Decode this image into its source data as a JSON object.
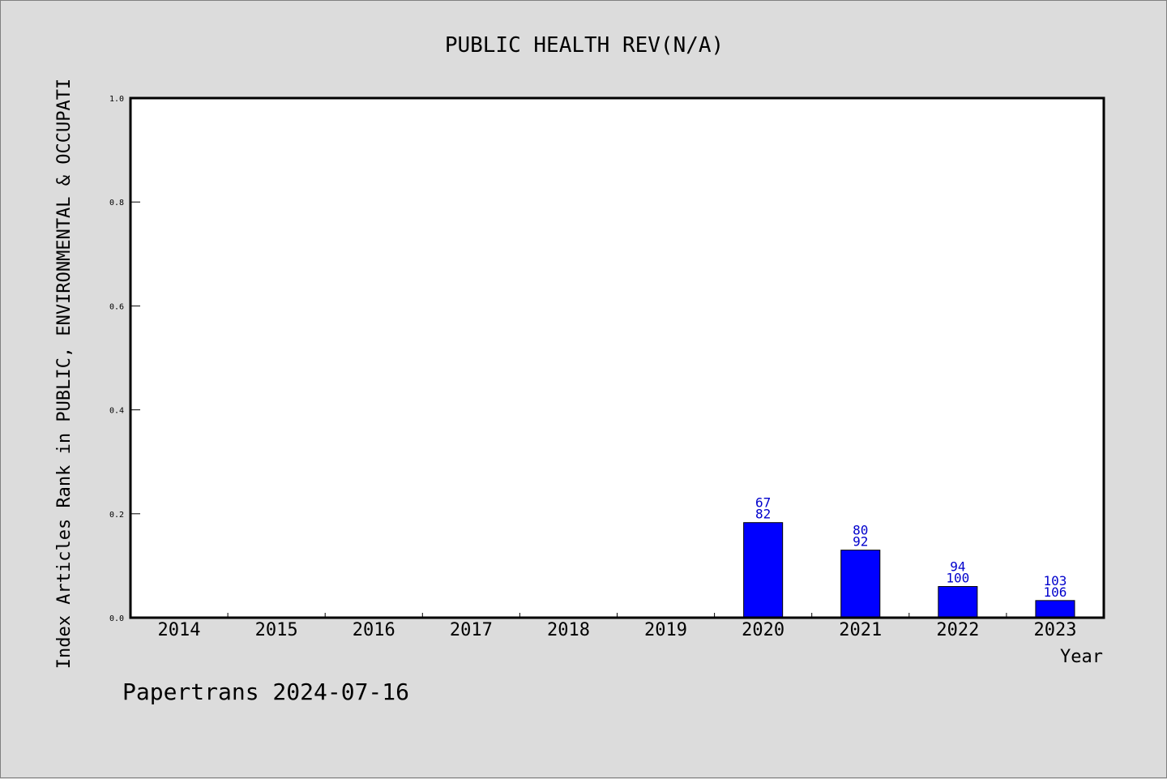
{
  "chart_data": {
    "type": "bar",
    "title": "PUBLIC HEALTH REV(N/A)",
    "xlabel": "Year",
    "ylabel": "Index Articles Rank in PUBLIC, ENVIRONMENTAL & OCCUPATI",
    "categories": [
      "2014",
      "2015",
      "2016",
      "2017",
      "2018",
      "2019",
      "2020",
      "2021",
      "2022",
      "2023"
    ],
    "values": [
      null,
      null,
      null,
      null,
      null,
      null,
      0.183,
      0.13,
      0.06,
      0.033
    ],
    "bar_labels": [
      null,
      null,
      null,
      null,
      null,
      null,
      [
        "67",
        "82"
      ],
      [
        "80",
        "92"
      ],
      [
        "94",
        "100"
      ],
      [
        "103",
        "106"
      ]
    ],
    "ylim": [
      0,
      1.0
    ],
    "yticks": [
      0.0,
      0.2,
      0.4,
      0.6,
      0.8,
      1.0
    ],
    "ytick_labels": [
      "0.0",
      "0.2",
      "0.4",
      "0.6",
      "0.8",
      "1.0"
    ],
    "grid": false,
    "colors": {
      "bar": "#0000ff",
      "bar_label": "#0000cc",
      "background": "#dcdcdc",
      "plot_background": "#ffffff"
    }
  },
  "footer": "Papertrans 2024-07-16"
}
